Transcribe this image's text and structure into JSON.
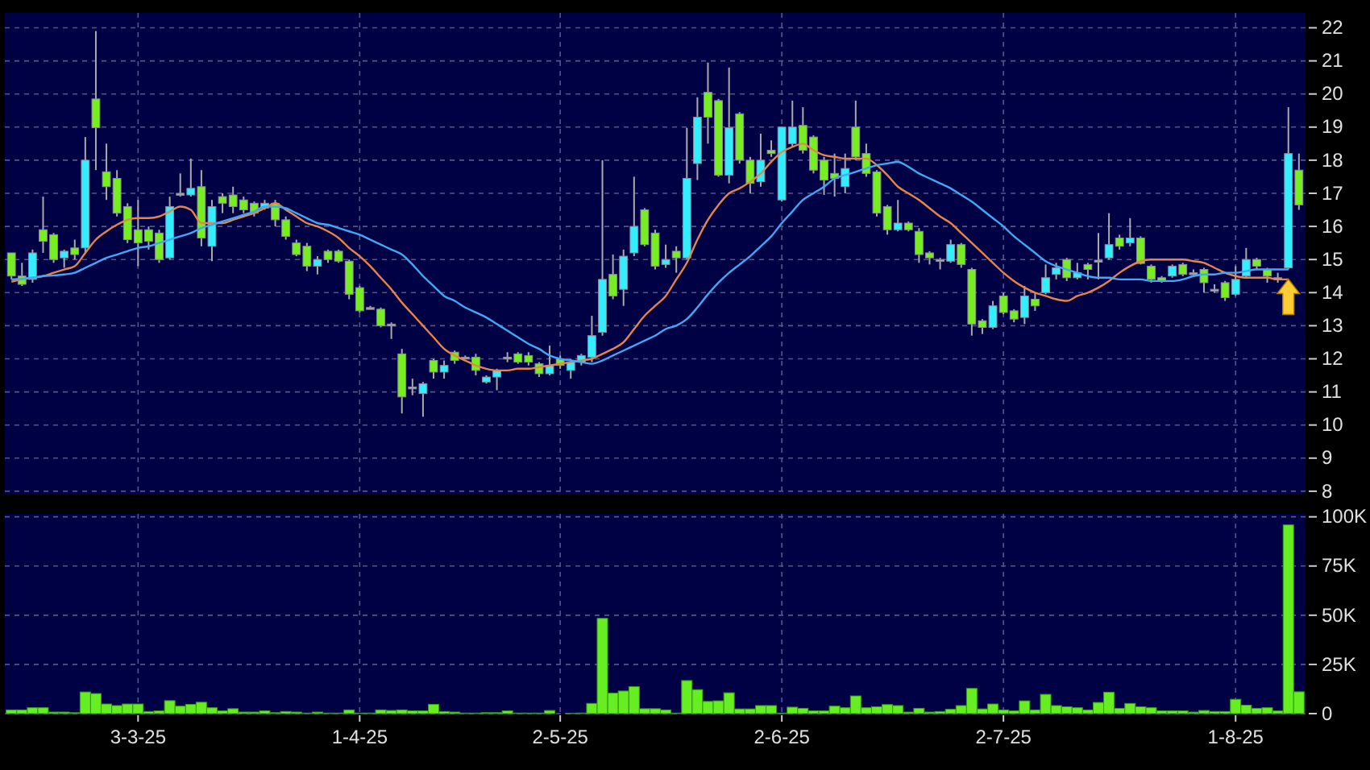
{
  "chart_data": [
    {
      "type": "candlestick",
      "tick_labels": "y",
      "grid": true,
      "categories": [
        null,
        null,
        null,
        null,
        null,
        null,
        null,
        null,
        null,
        null,
        null,
        null,
        null,
        null,
        null,
        null,
        null,
        null,
        null,
        null,
        null,
        null,
        null,
        null,
        null,
        null,
        null,
        null,
        null,
        null,
        null,
        null,
        null,
        null,
        null,
        null,
        null,
        null,
        null,
        null,
        null,
        null,
        null,
        null,
        null,
        null,
        null,
        null,
        null,
        null,
        null,
        null,
        null,
        null,
        null,
        null,
        null,
        null,
        null,
        null,
        null,
        null,
        null,
        null,
        null,
        null,
        null,
        null,
        null,
        null,
        null,
        null,
        null,
        null,
        null,
        null,
        null,
        null,
        null,
        null,
        null,
        null,
        null,
        null,
        null,
        null,
        null,
        null,
        null,
        null,
        null,
        null,
        null,
        null,
        null,
        null,
        null,
        null,
        null,
        null,
        null,
        null,
        null,
        null,
        null,
        null,
        null,
        null,
        null,
        null,
        null,
        null,
        null,
        null,
        null,
        null,
        null,
        null,
        null,
        null,
        null,
        null,
        null
      ],
      "ohlc": [
        [
          15.2,
          15.2,
          14.4,
          14.5
        ],
        [
          14.5,
          14.9,
          14.2,
          14.25
        ],
        [
          14.4,
          15.3,
          14.3,
          15.2
        ],
        [
          15.9,
          16.9,
          15.2,
          15.55
        ],
        [
          15.75,
          15.8,
          14.9,
          15.0
        ],
        [
          15.05,
          15.3,
          14.75,
          15.25
        ],
        [
          15.35,
          15.6,
          15.0,
          15.15
        ],
        [
          15.35,
          18.7,
          15.2,
          18.0
        ],
        [
          19.85,
          21.9,
          17.7,
          18.98
        ],
        [
          17.65,
          18.5,
          16.8,
          17.2
        ],
        [
          17.45,
          17.7,
          16.3,
          16.4
        ],
        [
          16.6,
          16.7,
          15.5,
          15.6
        ],
        [
          15.9,
          16.8,
          14.8,
          15.5
        ],
        [
          15.9,
          16.0,
          15.3,
          15.55
        ],
        [
          15.8,
          15.9,
          14.9,
          15.0
        ],
        [
          15.05,
          16.9,
          15.0,
          16.6
        ],
        [
          17.0,
          17.6,
          16.9,
          17.0
        ],
        [
          16.95,
          18.05,
          16.9,
          17.15
        ],
        [
          17.2,
          17.7,
          15.4,
          15.65
        ],
        [
          15.4,
          16.8,
          14.95,
          16.6
        ],
        [
          16.9,
          17.0,
          16.4,
          16.7
        ],
        [
          16.95,
          17.2,
          16.4,
          16.6
        ],
        [
          16.8,
          16.9,
          16.4,
          16.5
        ],
        [
          16.7,
          16.75,
          16.3,
          16.4
        ],
        [
          16.55,
          16.8,
          16.5,
          16.7
        ],
        [
          16.7,
          16.8,
          16.0,
          16.2
        ],
        [
          16.2,
          16.3,
          15.6,
          15.7
        ],
        [
          15.5,
          15.6,
          15.1,
          15.15
        ],
        [
          15.4,
          15.5,
          14.65,
          14.8
        ],
        [
          14.8,
          15.1,
          14.55,
          15.0
        ],
        [
          15.25,
          15.3,
          14.9,
          15.0
        ],
        [
          15.25,
          15.3,
          14.9,
          14.95
        ],
        [
          14.95,
          15.0,
          13.8,
          13.95
        ],
        [
          14.15,
          14.2,
          13.4,
          13.45
        ],
        [
          13.55,
          13.6,
          13.5,
          13.55
        ],
        [
          13.5,
          13.55,
          12.95,
          13.0
        ],
        [
          13.05,
          13.1,
          12.6,
          13.05
        ],
        [
          12.15,
          12.3,
          10.35,
          10.85
        ],
        [
          11.15,
          11.4,
          10.9,
          11.15
        ],
        [
          10.95,
          11.3,
          10.25,
          11.25
        ],
        [
          11.95,
          12.0,
          11.4,
          11.6
        ],
        [
          11.6,
          11.95,
          11.4,
          11.8
        ],
        [
          12.2,
          12.25,
          11.85,
          11.95
        ],
        [
          12.05,
          12.1,
          12.0,
          12.05
        ],
        [
          12.05,
          12.15,
          11.5,
          11.65
        ],
        [
          11.3,
          11.5,
          11.25,
          11.45
        ],
        [
          11.45,
          11.7,
          11.05,
          11.65
        ],
        [
          12.05,
          12.2,
          11.9,
          12.05
        ],
        [
          12.15,
          12.2,
          11.85,
          11.9
        ],
        [
          12.1,
          12.2,
          11.8,
          11.9
        ],
        [
          11.85,
          11.9,
          11.45,
          11.55
        ],
        [
          11.55,
          12.4,
          11.5,
          11.8
        ],
        [
          12.0,
          12.1,
          11.7,
          11.8
        ],
        [
          11.65,
          12.0,
          11.4,
          11.9
        ],
        [
          11.9,
          12.15,
          11.8,
          12.1
        ],
        [
          12.05,
          13.3,
          11.9,
          12.7
        ],
        [
          12.8,
          18.0,
          12.7,
          14.4
        ],
        [
          14.55,
          15.15,
          13.8,
          13.9
        ],
        [
          14.1,
          15.3,
          13.6,
          15.1
        ],
        [
          15.2,
          17.5,
          15.1,
          16.0
        ],
        [
          16.5,
          16.55,
          15.4,
          15.45
        ],
        [
          15.8,
          15.9,
          14.7,
          14.8
        ],
        [
          14.85,
          15.45,
          14.75,
          15.0
        ],
        [
          15.25,
          15.4,
          14.6,
          15.05
        ],
        [
          15.05,
          18.98,
          15.0,
          17.45
        ],
        [
          17.9,
          19.9,
          17.4,
          19.3
        ],
        [
          20.05,
          20.95,
          18.5,
          19.3
        ],
        [
          19.8,
          19.85,
          17.5,
          17.55
        ],
        [
          17.55,
          20.8,
          17.3,
          18.98
        ],
        [
          19.4,
          19.45,
          17.9,
          18.0
        ],
        [
          18.0,
          18.1,
          17.0,
          17.3
        ],
        [
          17.35,
          18.8,
          17.2,
          18.0
        ],
        [
          18.3,
          18.6,
          18.1,
          18.2
        ],
        [
          16.8,
          19.0,
          16.75,
          19.0
        ],
        [
          18.5,
          19.8,
          18.4,
          19.0
        ],
        [
          19.05,
          19.6,
          18.2,
          18.3
        ],
        [
          18.7,
          18.75,
          17.6,
          17.7
        ],
        [
          18.0,
          18.1,
          16.95,
          17.4
        ],
        [
          17.6,
          18.2,
          16.9,
          17.45
        ],
        [
          17.2,
          18.2,
          17.0,
          17.75
        ],
        [
          19.0,
          19.8,
          18.0,
          18.1
        ],
        [
          18.2,
          18.5,
          17.5,
          17.6
        ],
        [
          17.65,
          17.7,
          16.3,
          16.4
        ],
        [
          16.6,
          16.65,
          15.75,
          15.9
        ],
        [
          15.9,
          16.8,
          15.85,
          16.1
        ],
        [
          16.1,
          16.15,
          15.85,
          15.9
        ],
        [
          15.85,
          15.95,
          14.9,
          15.15
        ],
        [
          15.2,
          15.25,
          14.85,
          15.05
        ],
        [
          15.0,
          15.05,
          14.7,
          15.0
        ],
        [
          14.95,
          15.6,
          14.9,
          15.45
        ],
        [
          15.45,
          15.5,
          14.75,
          14.85
        ],
        [
          14.7,
          14.75,
          12.7,
          13.05
        ],
        [
          13.15,
          13.2,
          12.75,
          12.95
        ],
        [
          12.95,
          13.75,
          12.9,
          13.6
        ],
        [
          13.9,
          14.0,
          13.35,
          13.4
        ],
        [
          13.45,
          13.5,
          13.1,
          13.2
        ],
        [
          13.25,
          14.2,
          13.05,
          13.9
        ],
        [
          13.8,
          14.0,
          13.45,
          13.6
        ],
        [
          14.0,
          14.85,
          13.95,
          14.45
        ],
        [
          14.55,
          14.9,
          14.4,
          14.75
        ],
        [
          15.0,
          15.05,
          14.35,
          14.45
        ],
        [
          14.45,
          14.9,
          14.4,
          14.6
        ],
        [
          14.85,
          14.9,
          14.4,
          14.7
        ],
        [
          14.98,
          15.8,
          14.4,
          14.98
        ],
        [
          15.05,
          16.4,
          15.0,
          15.45
        ],
        [
          15.65,
          15.75,
          15.3,
          15.4
        ],
        [
          15.5,
          16.25,
          15.4,
          15.65
        ],
        [
          15.65,
          15.7,
          14.85,
          14.88
        ],
        [
          14.8,
          14.85,
          14.3,
          14.4
        ],
        [
          14.45,
          14.5,
          14.3,
          14.35
        ],
        [
          14.5,
          14.85,
          14.45,
          14.8
        ],
        [
          14.85,
          14.9,
          14.5,
          14.55
        ],
        [
          14.6,
          14.7,
          14.5,
          14.6
        ],
        [
          14.7,
          14.75,
          14.0,
          14.3
        ],
        [
          14.1,
          14.25,
          14.0,
          14.1
        ],
        [
          14.3,
          14.35,
          13.75,
          13.85
        ],
        [
          13.95,
          14.8,
          13.9,
          14.4
        ],
        [
          14.5,
          15.35,
          14.45,
          15.0
        ],
        [
          15.0,
          15.05,
          14.7,
          14.8
        ],
        [
          14.7,
          14.75,
          14.3,
          14.5
        ],
        [
          14.45,
          14.6,
          14.3,
          14.45
        ],
        [
          14.75,
          19.6,
          14.7,
          18.2
        ],
        [
          17.7,
          18.2,
          16.5,
          16.65
        ]
      ],
      "colors": [
        "#77ee22",
        "#77ee22",
        "#33eeff",
        "#77ee22",
        "#77ee22",
        "#33eeff",
        "#77ee22",
        "#33eeff",
        "#77ee22",
        "#77ee22",
        "#77ee22",
        "#77ee22",
        "#77ee22",
        "#77ee22",
        "#77ee22",
        "#33eeff",
        "#aaaaaa",
        "#33eeff",
        "#77ee22",
        "#33eeff",
        "#77ee22",
        "#77ee22",
        "#77ee22",
        "#77ee22",
        "#33eeff",
        "#77ee22",
        "#77ee22",
        "#77ee22",
        "#77ee22",
        "#33eeff",
        "#77ee22",
        "#77ee22",
        "#77ee22",
        "#77ee22",
        "#aaaaaa",
        "#77ee22",
        "#aaaaaa",
        "#77ee22",
        "#aaaaaa",
        "#33eeff",
        "#77ee22",
        "#33eeff",
        "#77ee22",
        "#aaaaaa",
        "#77ee22",
        "#33eeff",
        "#33eeff",
        "#aaaaaa",
        "#77ee22",
        "#77ee22",
        "#77ee22",
        "#33eeff",
        "#77ee22",
        "#33eeff",
        "#33eeff",
        "#33eeff",
        "#33eeff",
        "#77ee22",
        "#33eeff",
        "#33eeff",
        "#77ee22",
        "#77ee22",
        "#33eeff",
        "#77ee22",
        "#33eeff",
        "#33eeff",
        "#77ee22",
        "#77ee22",
        "#33eeff",
        "#77ee22",
        "#77ee22",
        "#33eeff",
        "#77ee22",
        "#33eeff",
        "#33eeff",
        "#77ee22",
        "#77ee22",
        "#77ee22",
        "#77ee22",
        "#33eeff",
        "#77ee22",
        "#77ee22",
        "#77ee22",
        "#77ee22",
        "#33eeff",
        "#77ee22",
        "#77ee22",
        "#77ee22",
        "#aaaaaa",
        "#33eeff",
        "#77ee22",
        "#77ee22",
        "#77ee22",
        "#33eeff",
        "#77ee22",
        "#77ee22",
        "#33eeff",
        "#77ee22",
        "#33eeff",
        "#33eeff",
        "#77ee22",
        "#33eeff",
        "#77ee22",
        "#aaaaaa",
        "#33eeff",
        "#77ee22",
        "#33eeff",
        "#77ee22",
        "#77ee22",
        "#77ee22",
        "#33eeff",
        "#77ee22",
        "#aaaaaa",
        "#77ee22",
        "#aaaaaa",
        "#77ee22",
        "#33eeff",
        "#33eeff",
        "#77ee22",
        "#77ee22",
        "#aaaaaa",
        "#33eeff",
        "#77ee22"
      ],
      "series": [
        {
          "type": "line",
          "color": "#e8844a",
          "values": [
            14.33,
            14.4,
            14.45,
            14.5,
            14.6,
            14.7,
            14.8,
            15.2,
            15.6,
            15.85,
            16.05,
            16.2,
            16.25,
            16.25,
            16.3,
            16.45,
            16.6,
            16.5,
            16.1,
            16.1,
            16.1,
            16.2,
            16.3,
            16.4,
            16.55,
            16.7,
            16.5,
            16.3,
            16.1,
            16.0,
            15.85,
            15.65,
            15.35,
            15.1,
            14.8,
            14.45,
            14.1,
            13.7,
            13.35,
            13.0,
            12.65,
            12.3,
            12.1,
            11.95,
            11.8,
            11.7,
            11.65,
            11.65,
            11.7,
            11.7,
            11.75,
            11.8,
            11.85,
            11.9,
            11.95,
            12.0,
            12.15,
            12.3,
            12.5,
            12.9,
            13.3,
            13.6,
            13.9,
            14.4,
            14.9,
            15.6,
            16.2,
            16.65,
            17.0,
            17.15,
            17.35,
            17.6,
            17.95,
            18.25,
            18.4,
            18.5,
            18.3,
            18.15,
            18.1,
            18.05,
            18.05,
            18.05,
            17.85,
            17.55,
            17.2,
            17.0,
            16.8,
            16.55,
            16.3,
            16.1,
            15.8,
            15.5,
            15.2,
            14.9,
            14.6,
            14.35,
            14.15,
            14.0,
            13.9,
            13.8,
            13.75,
            13.9,
            14.0,
            14.15,
            14.35,
            14.6,
            14.8,
            14.95,
            15.0,
            15.0,
            15.0,
            15.0,
            14.95,
            14.9,
            14.75,
            14.6,
            14.5,
            14.45,
            14.45,
            14.45,
            14.4,
            14.4,
            null
          ]
        },
        {
          "type": "line",
          "color": "#3fa9f5",
          "values": [
            14.4,
            14.42,
            14.45,
            14.5,
            14.52,
            14.55,
            14.6,
            14.75,
            14.9,
            15.05,
            15.15,
            15.25,
            15.35,
            15.4,
            15.5,
            15.6,
            15.7,
            15.8,
            15.95,
            16.05,
            16.15,
            16.25,
            16.35,
            16.45,
            16.6,
            16.6,
            16.55,
            16.4,
            16.25,
            16.1,
            16.05,
            15.95,
            15.85,
            15.75,
            15.6,
            15.45,
            15.3,
            15.15,
            14.85,
            14.5,
            14.2,
            13.9,
            13.75,
            13.55,
            13.4,
            13.25,
            13.05,
            12.85,
            12.65,
            12.45,
            12.3,
            12.1,
            12.0,
            11.95,
            11.9,
            11.85,
            11.95,
            12.1,
            12.25,
            12.4,
            12.55,
            12.7,
            12.9,
            13.0,
            13.2,
            13.55,
            13.95,
            14.3,
            14.6,
            14.85,
            15.1,
            15.4,
            15.7,
            16.1,
            16.45,
            16.8,
            17.0,
            17.2,
            17.45,
            17.55,
            17.65,
            17.75,
            17.85,
            17.9,
            17.95,
            17.8,
            17.6,
            17.45,
            17.3,
            17.15,
            16.95,
            16.75,
            16.5,
            16.25,
            16.0,
            15.7,
            15.45,
            15.2,
            14.95,
            14.8,
            14.7,
            14.6,
            14.5,
            14.45,
            14.45,
            14.4,
            14.4,
            14.4,
            14.35,
            14.35,
            14.35,
            14.4,
            14.5,
            14.55,
            14.55,
            14.6,
            14.6,
            14.65,
            14.7,
            14.7,
            14.7,
            14.7,
            null
          ]
        }
      ],
      "ylim": [
        7.9,
        22.45
      ],
      "yticks": [
        8,
        9,
        10,
        11,
        12,
        13,
        14,
        15,
        16,
        17,
        18,
        19,
        20,
        21,
        22
      ]
    },
    {
      "type": "bar",
      "grid": true,
      "color": "#66ee22",
      "categories": [
        null,
        null,
        null,
        null,
        null,
        null,
        null,
        null,
        null,
        null,
        null,
        null,
        "3-3-25",
        null,
        null,
        null,
        null,
        null,
        null,
        null,
        null,
        null,
        null,
        null,
        null,
        null,
        null,
        null,
        null,
        null,
        null,
        null,
        null,
        "1-4-25",
        null,
        null,
        null,
        null,
        null,
        null,
        null,
        null,
        null,
        null,
        null,
        null,
        null,
        null,
        null,
        null,
        null,
        null,
        "2-5-25",
        null,
        null,
        null,
        null,
        null,
        null,
        null,
        null,
        null,
        null,
        null,
        null,
        null,
        null,
        null,
        null,
        null,
        null,
        null,
        null,
        "2-6-25",
        null,
        null,
        null,
        null,
        null,
        null,
        null,
        null,
        null,
        null,
        null,
        null,
        null,
        null,
        null,
        null,
        null,
        null,
        null,
        null,
        "2-7-25",
        null,
        null,
        null,
        null,
        null,
        null,
        null,
        null,
        null,
        null,
        null,
        null,
        null,
        null,
        null,
        null,
        null,
        null,
        null,
        null,
        null,
        "1-8-25",
        null,
        null,
        null,
        null,
        null,
        null
      ],
      "values": [
        1900,
        1900,
        3000,
        3000,
        800,
        800,
        500,
        11000,
        10200,
        4900,
        4100,
        4900,
        4900,
        1100,
        1400,
        6600,
        3800,
        4700,
        5800,
        3000,
        1400,
        2500,
        800,
        800,
        1400,
        500,
        1100,
        800,
        300,
        800,
        300,
        300,
        1900,
        300,
        300,
        1900,
        1600,
        1900,
        1400,
        1400,
        4700,
        1100,
        800,
        300,
        300,
        500,
        500,
        1400,
        300,
        300,
        300,
        1600,
        0,
        200,
        300,
        5200,
        48400,
        10400,
        11500,
        13700,
        2500,
        2500,
        1900,
        300,
        16800,
        12200,
        6200,
        6500,
        10600,
        2400,
        2400,
        4100,
        4100,
        300,
        3300,
        2700,
        1400,
        1400,
        3800,
        3000,
        9000,
        3000,
        3500,
        4600,
        4100,
        800,
        2700,
        800,
        1100,
        2200,
        4100,
        12800,
        2400,
        4900,
        1900,
        1400,
        6500,
        1900,
        9800,
        4100,
        3500,
        3000,
        1900,
        5700,
        10900,
        2700,
        5200,
        3500,
        3000,
        1400,
        1400,
        1400,
        800,
        1600,
        1100,
        1100,
        7300,
        4300,
        2700,
        3000,
        1400,
        95900,
        11100
      ],
      "ylim": [
        0,
        101500
      ],
      "yticks": [
        0,
        {
          "value": 25000,
          "label": "25K"
        },
        {
          "value": 50000,
          "label": "50K"
        },
        {
          "value": 75000,
          "label": "75K"
        },
        {
          "value": 100000,
          "label": "100K"
        }
      ]
    }
  ]
}
